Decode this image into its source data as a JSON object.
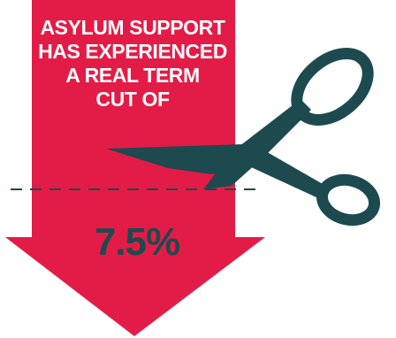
{
  "headline": {
    "line1": "ASYLUM SUPPORT",
    "line2": "HAS EXPERIENCED",
    "line3": "A REAL TERM",
    "line4": "CUT OF"
  },
  "figure": {
    "value": "7.5%"
  },
  "colors": {
    "arrow": "#e31c47",
    "scissors": "#1c4a4f",
    "cut_line": "#1c4a4f",
    "headline_text": "#ffffff",
    "figure_text": "#1c4a4f"
  },
  "icons": {
    "arrow": "down-arrow-icon",
    "scissors": "scissors-icon"
  }
}
